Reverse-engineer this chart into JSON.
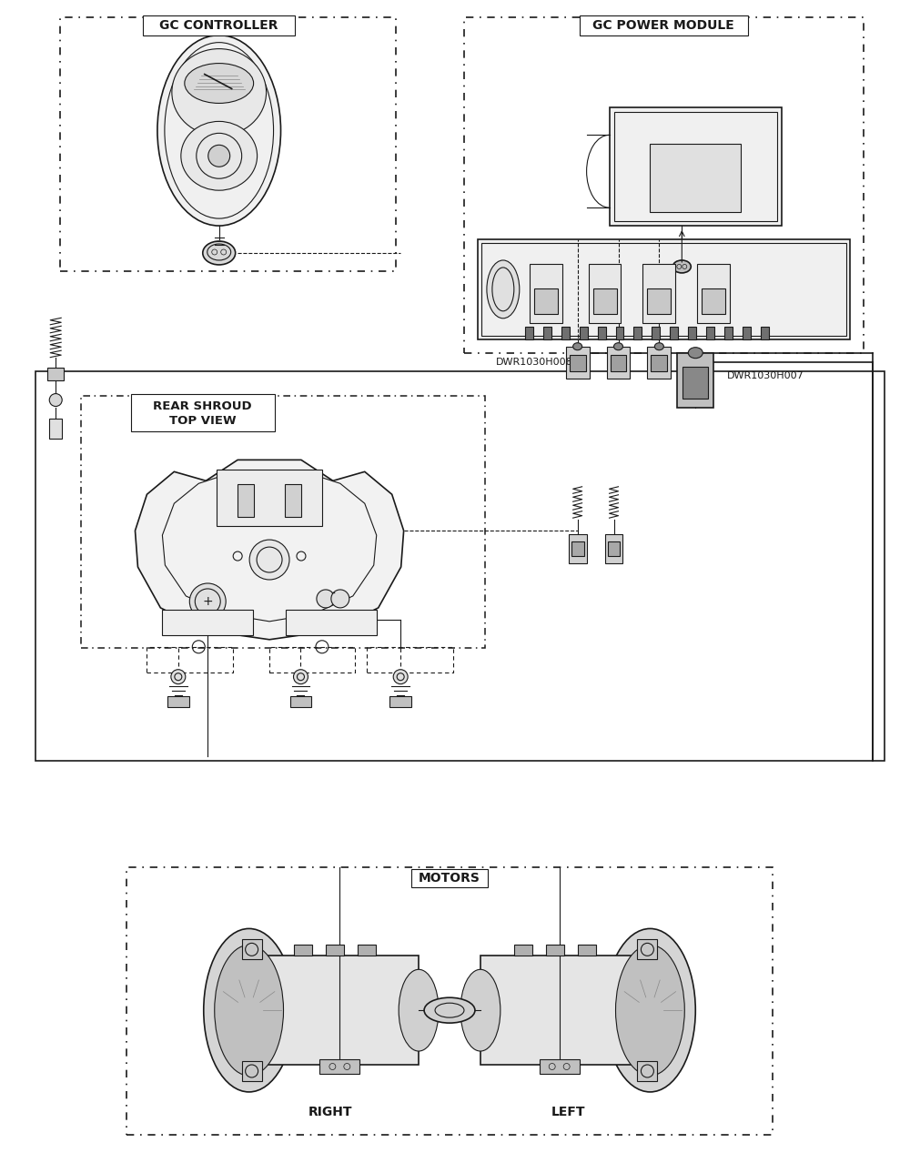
{
  "bg_color": "#ffffff",
  "line_color": "#1a1a1a",
  "title_gc_controller": "GC CONTROLLER",
  "title_gc_power": "GC POWER MODULE",
  "label_rear_shroud_1": "REAR SHROUD",
  "label_rear_shroud_2": "TOP VIEW",
  "label_motors": "MOTORS",
  "label_right": "RIGHT",
  "label_left": "LEFT",
  "label_dwr008": "DWR1030H008",
  "label_dwr007": "DWR1030H007",
  "figsize": [
    10.0,
    12.67
  ],
  "dpi": 100
}
